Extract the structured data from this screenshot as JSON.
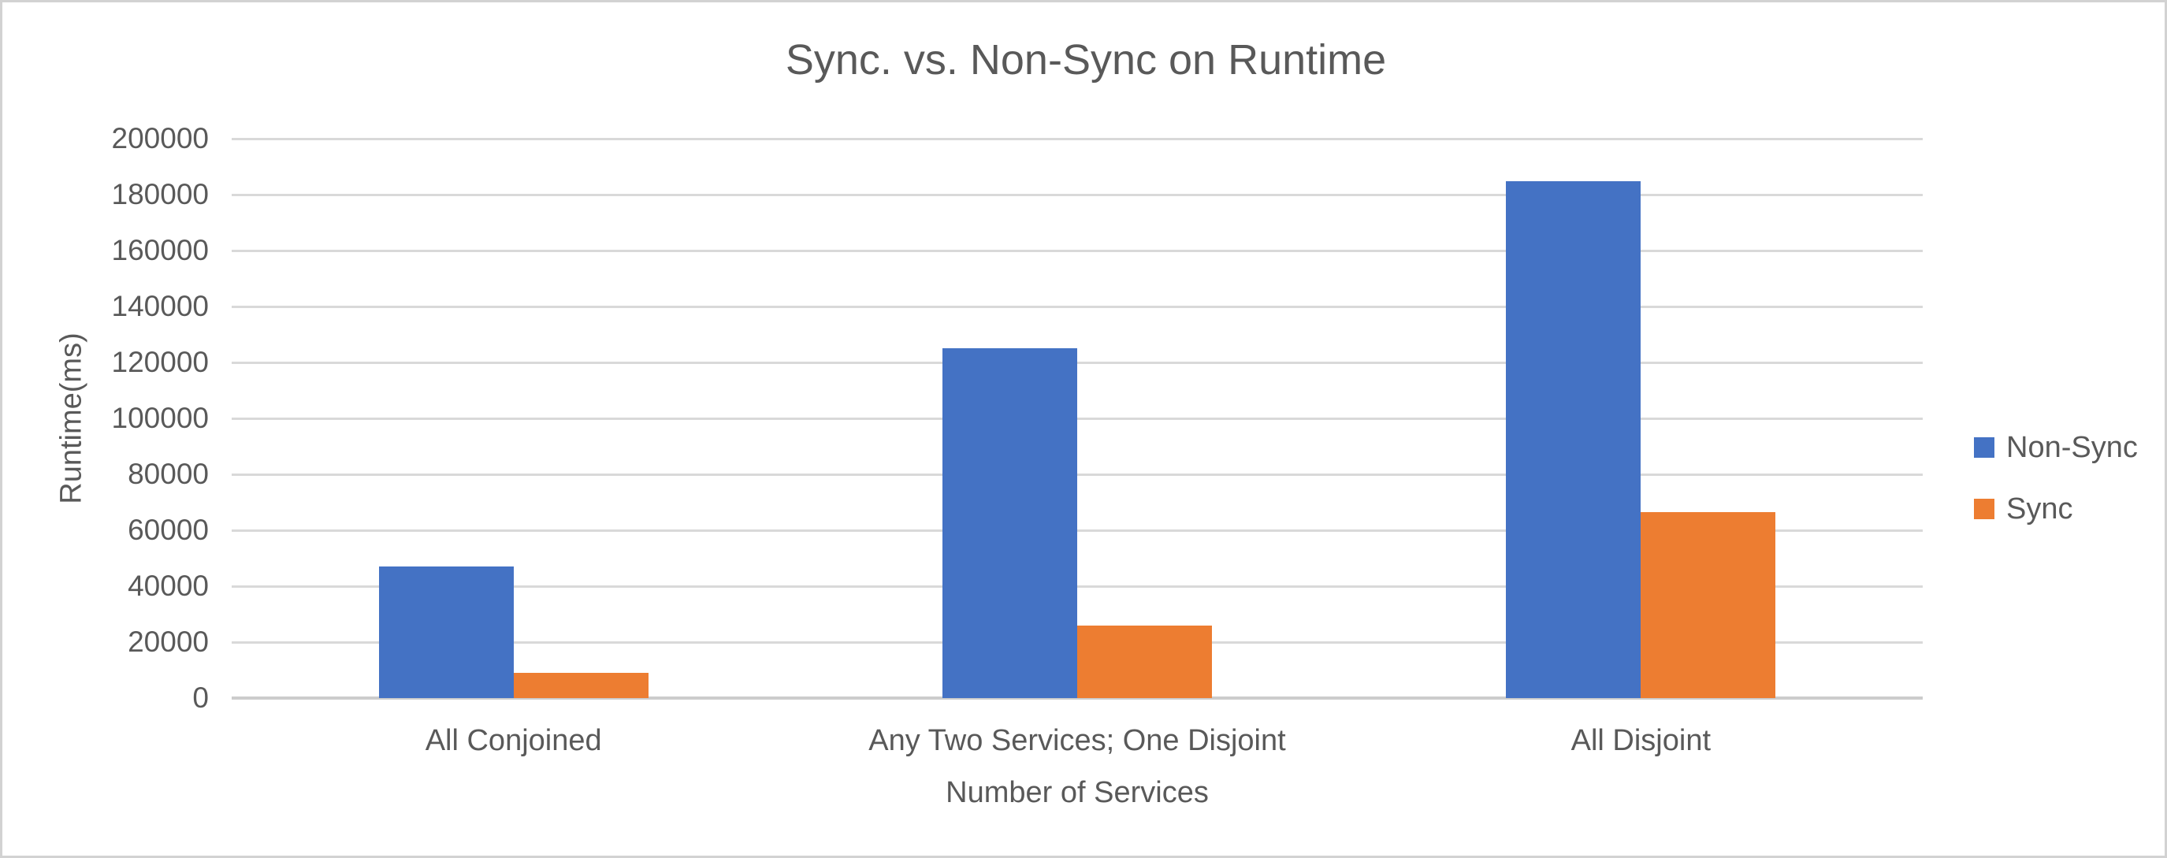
{
  "chart_data": {
    "type": "bar",
    "title": "Sync. vs. Non-Sync on Runtime",
    "xlabel": "Number of Services",
    "ylabel": "Runtime(ms)",
    "categories": [
      "All Conjoined",
      "Any Two Services; One Disjoint",
      "All Disjoint"
    ],
    "series": [
      {
        "name": "Non-Sync",
        "color": "#4472C4",
        "values": [
          47000,
          125000,
          184800
        ]
      },
      {
        "name": "Sync",
        "color": "#ED7D31",
        "values": [
          9000,
          26000,
          66500
        ]
      }
    ],
    "ylim": [
      0,
      200000
    ],
    "ytick_step": 20000,
    "yticks": [
      0,
      20000,
      40000,
      60000,
      80000,
      100000,
      120000,
      140000,
      160000,
      180000,
      200000
    ],
    "grid": true,
    "legend_position": "right",
    "colors": {
      "gridline": "#D9D9D9",
      "axis_line": "#CCCCCC",
      "text": "#595959",
      "background": "#FFFFFF",
      "border": "#D2D2D2"
    }
  }
}
